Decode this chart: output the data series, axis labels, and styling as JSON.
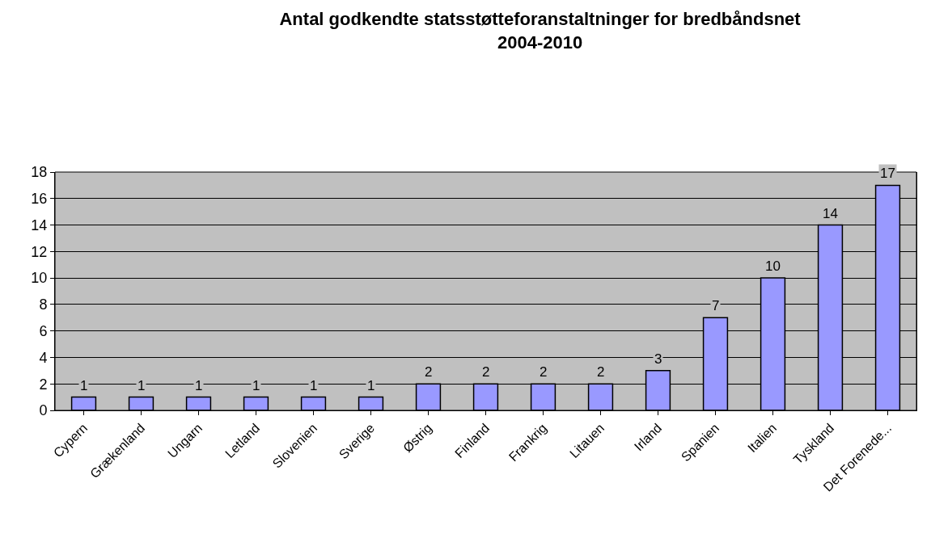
{
  "chart_data": {
    "type": "bar",
    "title": "Antal godkendte statsstøtteforanstaltninger for bredbåndsnet\n2004-2010",
    "categories": [
      "Cypern",
      "Grækenland",
      "Ungarn",
      "Letland",
      "Slovenien",
      "Sverige",
      "Østrig",
      "Finland",
      "Frankrig",
      "Litauen",
      "Irland",
      "Spanien",
      "Italien",
      "Tyskland",
      "Det Forenede..."
    ],
    "values": [
      1,
      1,
      1,
      1,
      1,
      1,
      2,
      2,
      2,
      2,
      3,
      7,
      10,
      14,
      17
    ],
    "color": "#9999ff",
    "ylim": [
      0,
      18
    ],
    "yticks": [
      0,
      2,
      4,
      6,
      8,
      10,
      12,
      14,
      16,
      18
    ],
    "grid": "y",
    "data_labels": true,
    "legend": false
  }
}
